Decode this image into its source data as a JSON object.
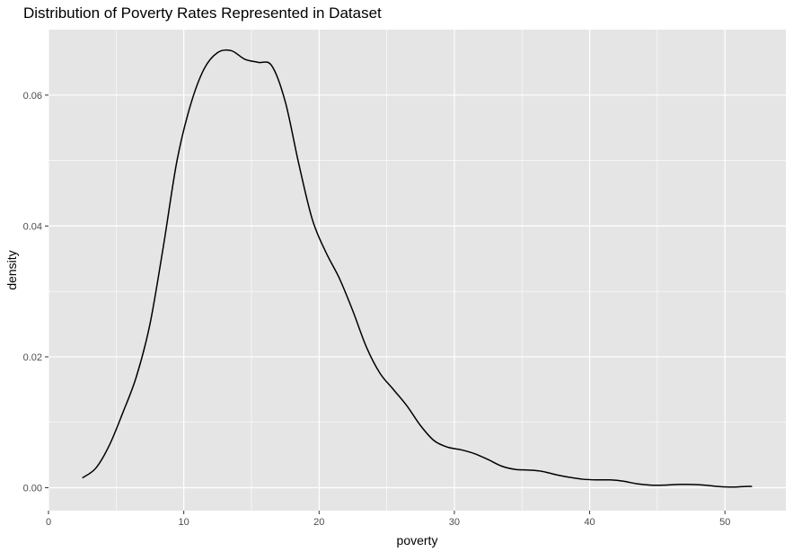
{
  "chart_data": {
    "type": "line",
    "title": "Distribution of Poverty Rates Represented in Dataset",
    "xlabel": "poverty",
    "ylabel": "density",
    "xlim": [
      0,
      54.5
    ],
    "ylim": [
      -0.0035,
      0.07
    ],
    "x_ticks": [
      0,
      10,
      20,
      30,
      40,
      50
    ],
    "x_tick_labels": [
      "0",
      "10",
      "20",
      "30",
      "40",
      "50"
    ],
    "y_ticks": [
      0.0,
      0.02,
      0.04,
      0.06
    ],
    "y_tick_labels": [
      "0.00",
      "0.02",
      "0.04",
      "0.06"
    ],
    "grid": true,
    "legend": "none",
    "colors": {
      "panel": "#e5e5e5",
      "grid": "#ffffff",
      "line": "#000000",
      "tick": "#4d4d4d"
    },
    "series": [
      {
        "x": [
          2.5,
          3.5,
          4.5,
          5.5,
          6.5,
          7.5,
          8.5,
          9.5,
          10.5,
          11.5,
          12.5,
          13.5,
          14.5,
          15.5,
          16.5,
          17.5,
          18.5,
          19.5,
          20.5,
          21.5,
          22.5,
          23.5,
          24.5,
          25.5,
          26.5,
          27.5,
          28.5,
          29.5,
          30.5,
          31.5,
          32.5,
          33.5,
          34.5,
          35.5,
          36.5,
          37.5,
          38.5,
          39.5,
          40.5,
          41.5,
          42.5,
          43.5,
          44.5,
          45.5,
          46.5,
          47.5,
          48.5,
          49.5,
          50.5,
          51.5,
          52
        ],
        "y": [
          0.0015,
          0.003,
          0.0065,
          0.0115,
          0.017,
          0.025,
          0.037,
          0.05,
          0.0585,
          0.064,
          0.0665,
          0.0668,
          0.0655,
          0.065,
          0.0645,
          0.059,
          0.0495,
          0.041,
          0.036,
          0.032,
          0.027,
          0.0215,
          0.0175,
          0.015,
          0.0125,
          0.0095,
          0.0072,
          0.0062,
          0.0058,
          0.0052,
          0.0043,
          0.0033,
          0.0028,
          0.0027,
          0.0025,
          0.002,
          0.0016,
          0.0013,
          0.0012,
          0.0012,
          0.001,
          0.0006,
          0.0004,
          0.0004,
          0.0005,
          0.0005,
          0.0004,
          0.0002,
          0.0001,
          0.0002,
          0.0002
        ]
      }
    ]
  }
}
